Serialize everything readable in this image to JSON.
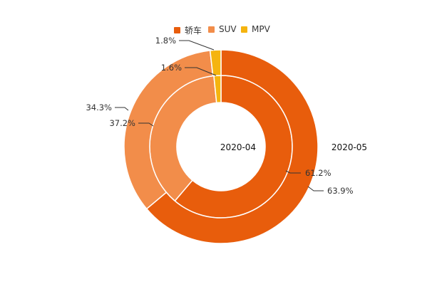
{
  "chart_data": {
    "type": "pie",
    "subtype": "nested-donut",
    "legend": {
      "placement": "top-center",
      "entries": [
        "轿车",
        "SUV",
        "MPV"
      ]
    },
    "colors": {
      "轿车": "#e85d0c",
      "SUV": "#f28d4a",
      "MPV": "#f5b40f"
    },
    "rings": [
      {
        "name": "2020-04",
        "position": "inner",
        "slices": [
          {
            "category": "轿车",
            "value": 61.2,
            "label": "61.2%"
          },
          {
            "category": "SUV",
            "value": 37.2,
            "label": "37.2%"
          },
          {
            "category": "MPV",
            "value": 1.6,
            "label": "1.6%"
          }
        ]
      },
      {
        "name": "2020-05",
        "position": "outer",
        "slices": [
          {
            "category": "轿车",
            "value": 63.9,
            "label": "63.9%"
          },
          {
            "category": "SUV",
            "value": 34.3,
            "label": "34.3%"
          },
          {
            "category": "MPV",
            "value": 1.8,
            "label": "1.8%"
          }
        ]
      }
    ]
  }
}
